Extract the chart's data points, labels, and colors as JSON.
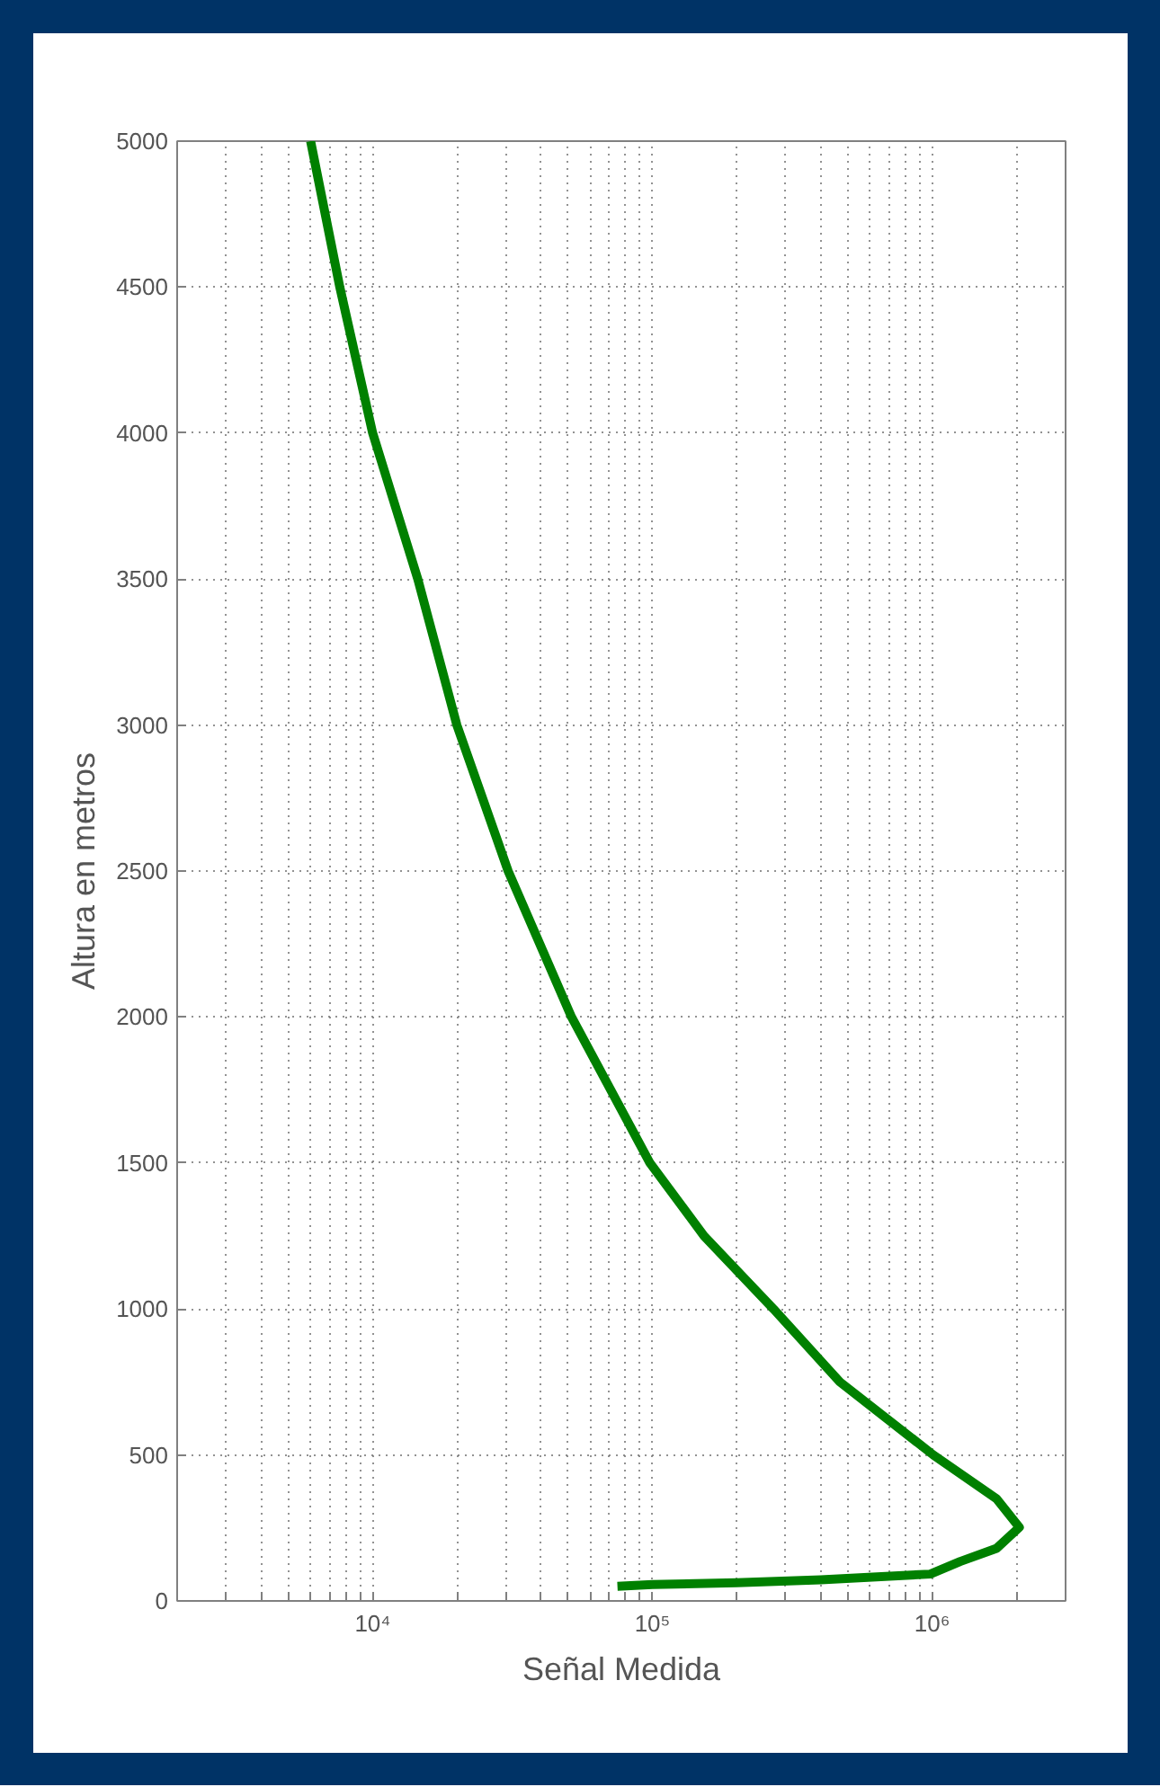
{
  "chart_data": {
    "type": "line",
    "xlabel": "Señal Medida",
    "ylabel": "Altura en metros",
    "log": "x",
    "xlim": [
      2000,
      3000000
    ],
    "ylim": [
      0,
      5000
    ],
    "xticks": [
      {
        "value": 2000,
        "label": null
      },
      {
        "value": 3000,
        "label": null
      },
      {
        "value": 4000,
        "label": null
      },
      {
        "value": 5000,
        "label": null
      },
      {
        "value": 6000,
        "label": null
      },
      {
        "value": 7000,
        "label": null
      },
      {
        "value": 8000,
        "label": null
      },
      {
        "value": 9000,
        "label": null
      },
      {
        "value": 10000,
        "label": "10⁴"
      },
      {
        "value": 20000,
        "label": null
      },
      {
        "value": 30000,
        "label": null
      },
      {
        "value": 40000,
        "label": null
      },
      {
        "value": 50000,
        "label": null
      },
      {
        "value": 60000,
        "label": null
      },
      {
        "value": 70000,
        "label": null
      },
      {
        "value": 80000,
        "label": null
      },
      {
        "value": 90000,
        "label": null
      },
      {
        "value": 100000,
        "label": "10⁵"
      },
      {
        "value": 200000,
        "label": null
      },
      {
        "value": 300000,
        "label": null
      },
      {
        "value": 400000,
        "label": null
      },
      {
        "value": 500000,
        "label": null
      },
      {
        "value": 600000,
        "label": null
      },
      {
        "value": 700000,
        "label": null
      },
      {
        "value": 800000,
        "label": null
      },
      {
        "value": 900000,
        "label": null
      },
      {
        "value": 1000000,
        "label": "10⁶"
      },
      {
        "value": 2000000,
        "label": null
      },
      {
        "value": 3000000,
        "label": null
      }
    ],
    "yticks": [
      0,
      500,
      1000,
      1500,
      2000,
      2500,
      3000,
      3500,
      4000,
      4500,
      5000
    ],
    "grid": true,
    "series": [
      {
        "color": "#008000",
        "x": [
          75000,
          100000,
          200000,
          400000,
          985000,
          1260000,
          1700000,
          2050000,
          1700000,
          1010000,
          468000,
          271000,
          153000,
          98000,
          51400,
          30500,
          20000,
          14500,
          10000,
          7630,
          6000
        ],
        "values": [
          50,
          56,
          62,
          72,
          92,
          135,
          180,
          252,
          350,
          500,
          750,
          1000,
          1250,
          1500,
          2000,
          2500,
          3000,
          3500,
          4000,
          4500,
          5000
        ]
      }
    ]
  }
}
